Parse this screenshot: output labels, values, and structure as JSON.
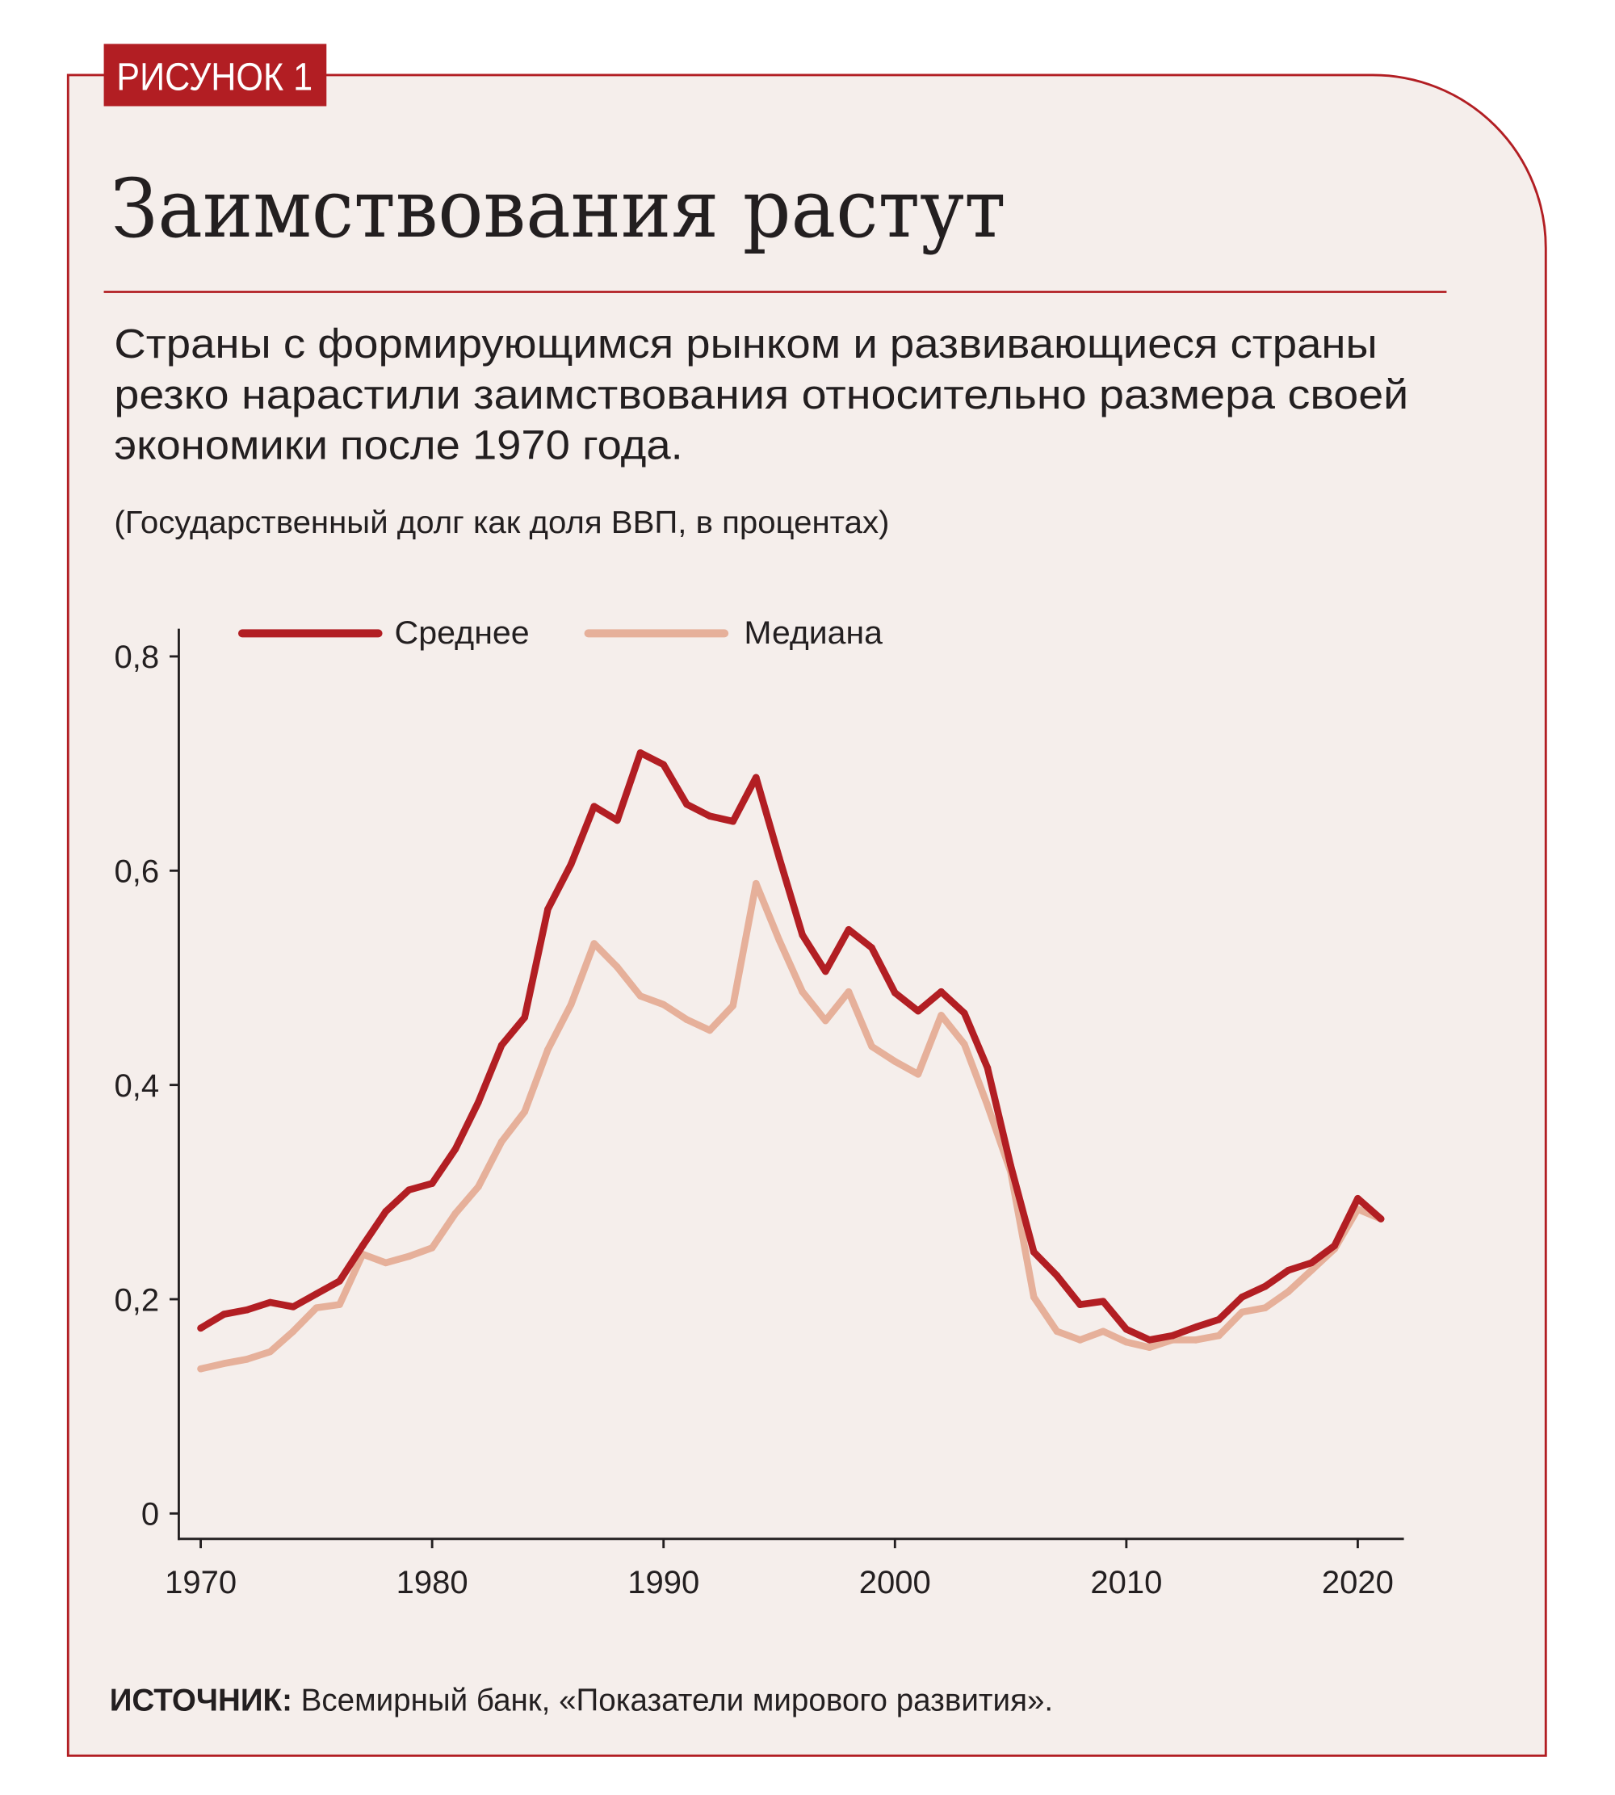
{
  "badge": "РИСУНОК 1",
  "title": "Заимствования растут",
  "subtitle_lines": [
    "Страны с формирующимся рынком и развивающиеся страны",
    "резко нарастили заимствования относительно размера своей",
    "экономики после 1970 года."
  ],
  "units": "(Государственный долг как доля ВВП, в процентах)",
  "source_label": "ИСТОЧНИК:",
  "source_text": " Всемирный банк, «Показатели мирового развития».",
  "colors": {
    "background": "#f5eeeb",
    "accent": "#b21e23",
    "mean": "#b21e23",
    "median": "#e6b09a",
    "text": "#231f20"
  },
  "chart_data": {
    "type": "line",
    "title": "Заимствования растут",
    "xlabel": "",
    "ylabel": "(Государственный долг как доля ВВП, в процентах)",
    "xlim": [
      1970,
      2021
    ],
    "ylim": [
      0,
      0.8
    ],
    "x_ticks": [
      1970,
      1980,
      1990,
      2000,
      2010,
      2020
    ],
    "x_tick_labels": [
      "1970",
      "1980",
      "1990",
      "2000",
      "2010",
      "2020"
    ],
    "y_ticks": [
      0,
      0.2,
      0.4,
      0.6,
      0.8
    ],
    "y_tick_labels": [
      "0",
      "0,2",
      "0,4",
      "0,6",
      "0,8"
    ],
    "grid": false,
    "legend_position": "top-left",
    "x": [
      1970,
      1971,
      1972,
      1973,
      1974,
      1975,
      1976,
      1977,
      1978,
      1979,
      1980,
      1981,
      1982,
      1983,
      1984,
      1985,
      1986,
      1987,
      1988,
      1989,
      1990,
      1991,
      1992,
      1993,
      1994,
      1995,
      1996,
      1997,
      1998,
      1999,
      2000,
      2001,
      2002,
      2003,
      2004,
      2005,
      2006,
      2007,
      2008,
      2009,
      2010,
      2011,
      2012,
      2013,
      2014,
      2015,
      2016,
      2017,
      2018,
      2019,
      2020,
      2021
    ],
    "series": [
      {
        "name": "Среднее",
        "color": "#b21e23",
        "values": [
          0.173,
          0.186,
          0.19,
          0.197,
          0.193,
          0.205,
          0.217,
          0.25,
          0.282,
          0.302,
          0.308,
          0.34,
          0.384,
          0.437,
          0.463,
          0.564,
          0.606,
          0.66,
          0.647,
          0.71,
          0.699,
          0.662,
          0.651,
          0.646,
          0.687,
          0.612,
          0.54,
          0.506,
          0.545,
          0.528,
          0.486,
          0.469,
          0.487,
          0.467,
          0.416,
          0.325,
          0.244,
          0.222,
          0.195,
          0.198,
          0.172,
          0.162,
          0.166,
          0.174,
          0.181,
          0.202,
          0.212,
          0.227,
          0.234,
          0.25,
          0.294,
          0.275
        ]
      },
      {
        "name": "Медиана",
        "color": "#e6b09a",
        "values": [
          0.135,
          0.14,
          0.144,
          0.151,
          0.17,
          0.192,
          0.195,
          0.242,
          0.234,
          0.24,
          0.248,
          0.28,
          0.305,
          0.347,
          0.375,
          0.433,
          0.475,
          0.532,
          0.51,
          0.483,
          0.475,
          0.461,
          0.451,
          0.474,
          0.588,
          0.535,
          0.487,
          0.46,
          0.487,
          0.436,
          0.422,
          0.41,
          0.465,
          0.438,
          0.381,
          0.319,
          0.202,
          0.17,
          0.162,
          0.17,
          0.16,
          0.155,
          0.162,
          0.162,
          0.166,
          0.188,
          0.192,
          0.207,
          0.227,
          0.247,
          0.284,
          0.275
        ]
      }
    ]
  }
}
